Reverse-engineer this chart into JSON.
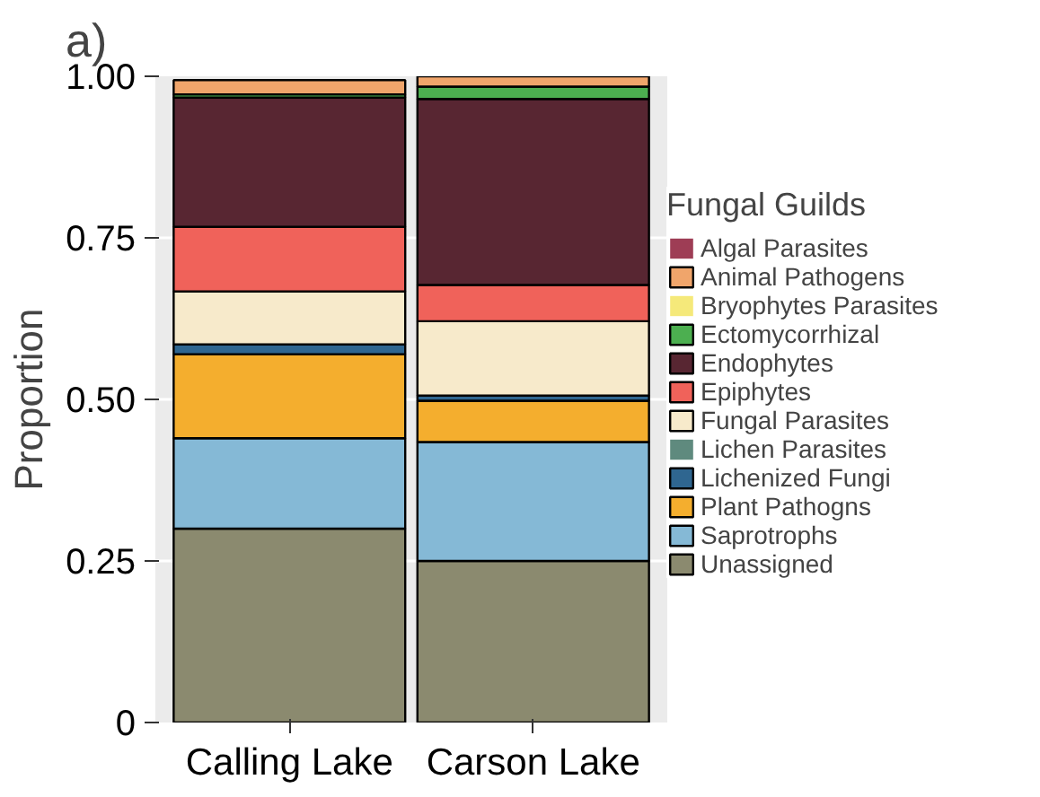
{
  "chart_data": {
    "type": "bar",
    "stacked": true,
    "title": "a)",
    "ylabel": "Proportion",
    "legend_title": "Fungal Guilds",
    "categories": [
      "Calling Lake",
      "Carson Lake"
    ],
    "ylim": [
      0,
      1.0
    ],
    "yticks": [
      {
        "value": 0,
        "label": "0"
      },
      {
        "value": 0.25,
        "label": "0.25"
      },
      {
        "value": 0.5,
        "label": "0.50"
      },
      {
        "value": 0.75,
        "label": "0.75"
      },
      {
        "value": 1.0,
        "label": "1.00"
      }
    ],
    "grid": "y",
    "legend": "right",
    "series": [
      {
        "name": "Unassigned",
        "color": "#8b8a6f",
        "values": [
          0.3,
          0.25
        ]
      },
      {
        "name": "Saprotrophs",
        "color": "#85b9d6",
        "values": [
          0.14,
          0.184
        ]
      },
      {
        "name": "Plant Pathogns",
        "color": "#f4ae2e",
        "values": [
          0.13,
          0.064
        ]
      },
      {
        "name": "Lichenized Fungi",
        "color": "#2f6690",
        "values": [
          0.015,
          0.008
        ]
      },
      {
        "name": "Lichen Parasites",
        "color": "#5f8a7e",
        "values": [
          null,
          0
        ]
      },
      {
        "name": "Fungal Parasites",
        "color": "#f7eacb",
        "values": [
          0.082,
          0.115
        ]
      },
      {
        "name": "Epiphytes",
        "color": "#f0625a",
        "values": [
          0.1,
          0.056
        ]
      },
      {
        "name": "Endophytes",
        "color": "#582632",
        "values": [
          0.2,
          0.288
        ]
      },
      {
        "name": "Ectomycorrhizal",
        "color": "#4caf50",
        "values": [
          0.005,
          0.019
        ]
      },
      {
        "name": "Bryophytes Parasites",
        "color": "#f5e97a",
        "values": [
          0,
          0
        ]
      },
      {
        "name": "Animal Pathogens",
        "color": "#f0a56b",
        "values": [
          0.022,
          0.016
        ]
      },
      {
        "name": "Algal Parasites",
        "color": "#9e3d55",
        "values": [
          0,
          0
        ]
      }
    ]
  }
}
